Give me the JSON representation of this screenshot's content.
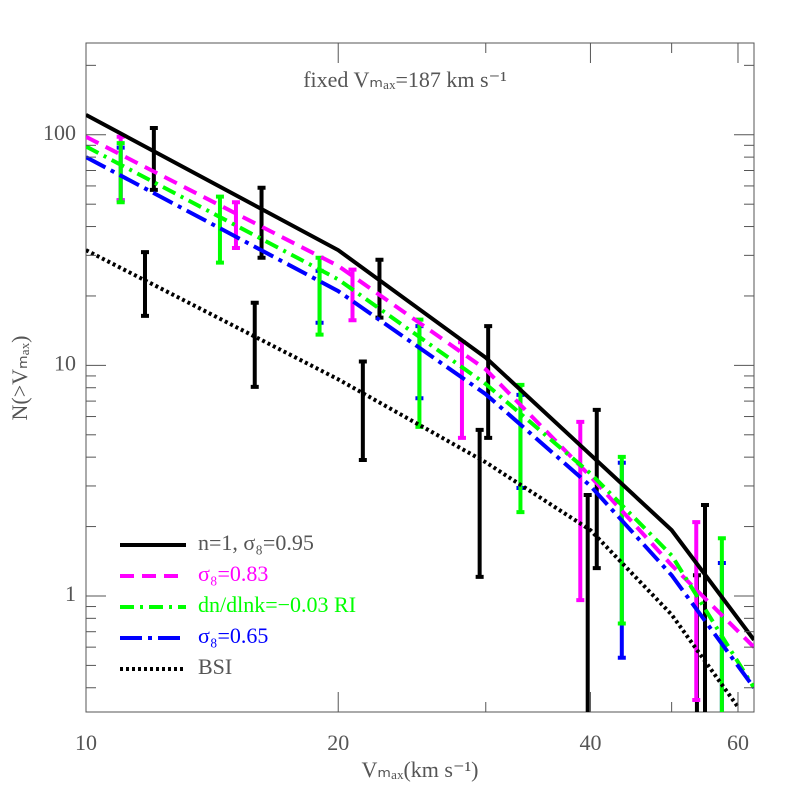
{
  "chart_data": {
    "type": "line",
    "annotation": "fixed Vₘₐₓ=187 km s⁻¹",
    "xlabel": "Vₘₐₓ(km s⁻¹)",
    "ylabel": "N(>Vₘₐₓ)",
    "xscale": "log",
    "yscale": "log",
    "xlim": [
      10,
      62.7
    ],
    "ylim": [
      0.314,
      250
    ],
    "xticks": [
      10,
      20,
      40,
      60
    ],
    "xminorticks": [
      30,
      50
    ],
    "yticks": [
      1,
      10,
      100
    ],
    "yminorticks": [
      0.4,
      0.5,
      0.6,
      0.7,
      0.8,
      0.9,
      2,
      3,
      4,
      5,
      6,
      7,
      8,
      9,
      20,
      30,
      40,
      50,
      60,
      70,
      80,
      90,
      200
    ],
    "legend": "lower left",
    "series": [
      {
        "name": "n=1, σ₈=0.95",
        "color": "#000000",
        "style": "solid",
        "x": [
          10,
          20,
          30,
          40,
          50,
          62.7
        ],
        "values": [
          122,
          31.6,
          10.8,
          4.1,
          1.93,
          0.645
        ]
      },
      {
        "name": "σ₈=0.83",
        "color": "#ff00ff",
        "style": "dashed",
        "x": [
          10,
          20,
          30,
          40,
          50,
          62.7
        ],
        "values": [
          98,
          27,
          9.6,
          3.3,
          1.36,
          0.6
        ]
      },
      {
        "name": "dn/dlnk=−0.03 RI",
        "color": "#00ff00",
        "style": "dashdot",
        "x": [
          10,
          20,
          30,
          40,
          50,
          62.7
        ],
        "values": [
          89,
          23.6,
          8.3,
          3.4,
          1.5,
          0.4
        ]
      },
      {
        "name": "σ₈=0.65",
        "color": "#0000ff",
        "style": "longdashdot",
        "x": [
          10,
          20,
          30,
          40,
          50,
          62.7
        ],
        "values": [
          80,
          21,
          7.5,
          3.0,
          1.23,
          0.4
        ]
      },
      {
        "name": "BSI",
        "color": "#000000",
        "style": "dotted",
        "x": [
          10,
          20,
          30,
          40,
          50,
          60
        ],
        "values": [
          31.6,
          8.7,
          3.8,
          1.93,
          0.83,
          0.33
        ]
      }
    ],
    "error_bars": [
      {
        "color": "#0000ff",
        "x": [
          11.0,
          19.0,
          25.0,
          33.0,
          43.6,
          57.4
        ],
        "low": [
          52,
          15.3,
          7.2,
          2.94,
          0.54,
          0.2
        ],
        "high": [
          88,
          25.7,
          14.8,
          7.45,
          3.78,
          1.39
        ]
      },
      {
        "color": "#000000",
        "x": [
          12.05,
          11.76,
          16.2,
          15.9,
          22.4,
          21.4,
          30.2,
          29.5,
          40.7,
          39.7,
          54.8,
          53.6
        ],
        "low": [
          57.7,
          16.4,
          29.3,
          8.07,
          16.1,
          3.89,
          4.85,
          1.21,
          1.32,
          0.2,
          0.2,
          0.2
        ],
        "high": [
          107,
          31,
          58.9,
          18.7,
          28.7,
          10.4,
          14.8,
          5.25,
          6.41,
          2.74,
          2.48,
          1.23
        ]
      },
      {
        "color": "#ff00ff",
        "x": [
          11.0,
          15.1,
          20.8,
          28.1,
          38.9,
          53.5
        ],
        "low": [
          52,
          32.3,
          15.7,
          4.85,
          0.96,
          0.354
        ],
        "high": [
          98,
          51,
          26,
          12.6,
          5.69,
          2.09
        ]
      },
      {
        "color": "#00ff00",
        "x": [
          11.0,
          14.45,
          19.0,
          25.0,
          33.0,
          43.6,
          57.4
        ],
        "low": [
          51,
          27.9,
          13.6,
          5.41,
          2.31,
          0.76,
          0.2
        ],
        "high": [
          92,
          53.9,
          29.3,
          15.8,
          8.23,
          4.01,
          1.78
        ]
      }
    ]
  }
}
